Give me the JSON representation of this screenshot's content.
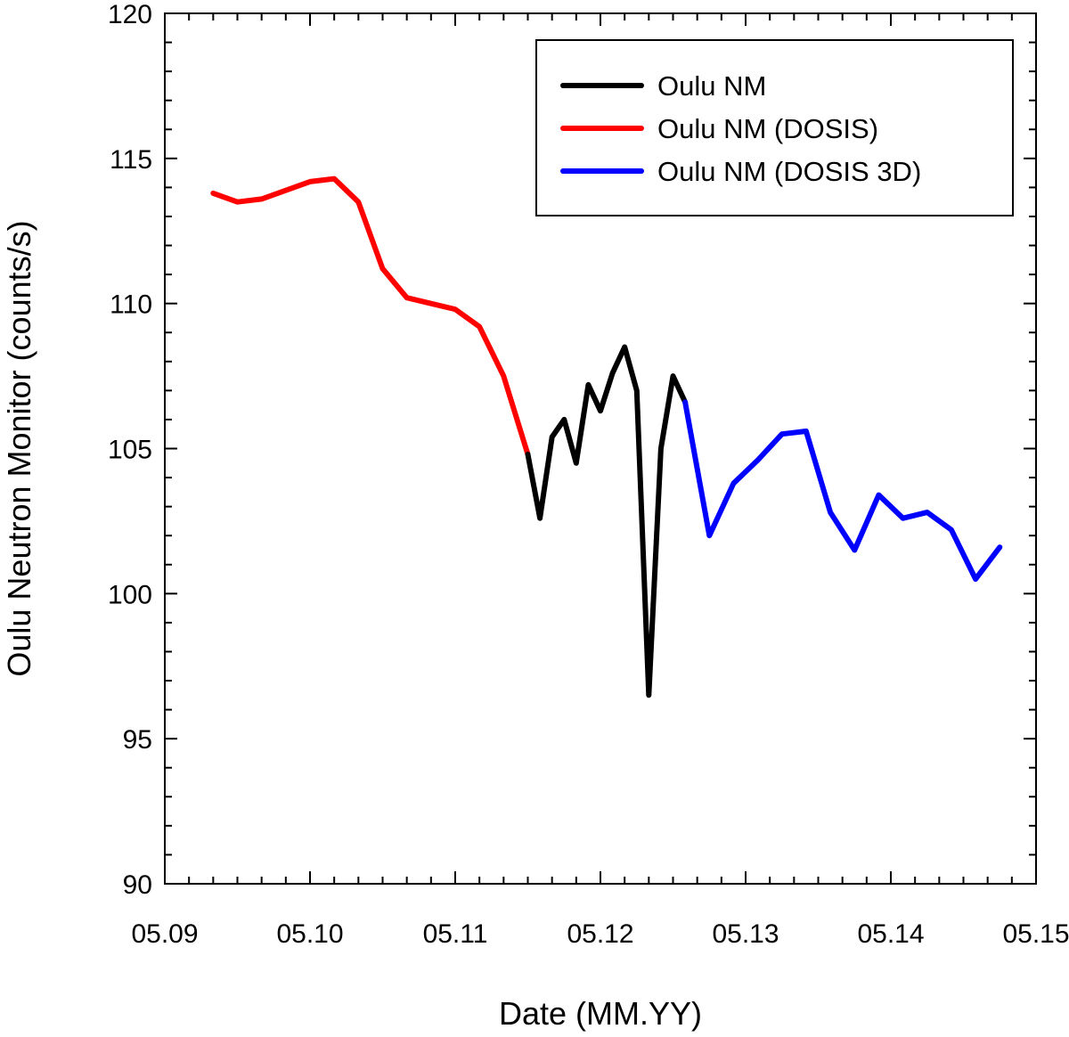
{
  "chart_data": {
    "type": "line",
    "title": "",
    "xlabel": "Date (MM.YY)",
    "ylabel": "Oulu Neutron Monitor (counts/s)",
    "x_ticks": [
      "05.09",
      "05.10",
      "05.11",
      "05.12",
      "05.13",
      "05.14",
      "05.15"
    ],
    "x_range": [
      "05.09",
      "05.15"
    ],
    "y_ticks": [
      90,
      95,
      100,
      105,
      110,
      115,
      120
    ],
    "ylim": [
      90,
      120
    ],
    "grid": false,
    "legend_position": "top-right",
    "series": [
      {
        "name": "Oulu NM",
        "color": "#000000",
        "x": [
          "11.11",
          "12.11",
          "01.12",
          "02.12",
          "03.12",
          "04.12",
          "05.12",
          "06.12",
          "07.12",
          "08.12",
          "09.12",
          "10.12",
          "11.12",
          "12.12"
        ],
        "y": [
          104.8,
          102.6,
          105.4,
          106.0,
          104.5,
          107.2,
          106.3,
          107.6,
          108.5,
          107.0,
          96.5,
          105.0,
          107.5,
          106.6
        ]
      },
      {
        "name": "Oulu NM (DOSIS)",
        "color": "#ff0000",
        "x": [
          "09.09",
          "11.09",
          "01.10",
          "03.10",
          "05.10",
          "07.10",
          "09.10",
          "11.10",
          "01.11",
          "03.11",
          "05.11",
          "07.11",
          "09.11",
          "11.11"
        ],
        "y": [
          113.8,
          113.5,
          113.6,
          113.9,
          114.2,
          114.3,
          113.5,
          111.2,
          110.2,
          110.0,
          109.8,
          109.2,
          107.5,
          104.8
        ]
      },
      {
        "name": "Oulu NM (DOSIS 3D)",
        "color": "#0000ff",
        "x": [
          "12.12",
          "02.13",
          "04.13",
          "06.13",
          "08.13",
          "10.13",
          "12.13",
          "02.14",
          "04.14",
          "06.14",
          "08.14",
          "10.14",
          "12.14",
          "02.15"
        ],
        "y": [
          106.6,
          102.0,
          103.8,
          104.6,
          105.5,
          105.6,
          102.8,
          101.5,
          103.4,
          102.6,
          102.8,
          102.2,
          100.5,
          101.6
        ]
      }
    ]
  }
}
